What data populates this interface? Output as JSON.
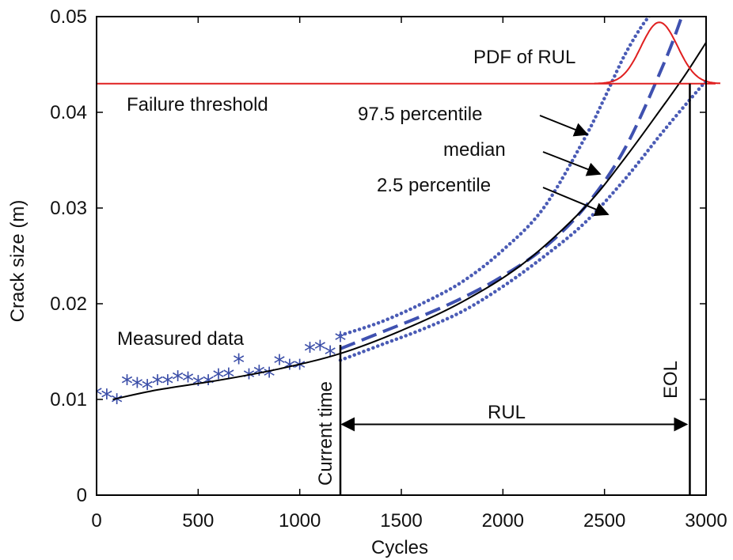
{
  "chart_data": {
    "type": "line",
    "xlabel": "Cycles",
    "ylabel": "Crack size (m)",
    "xlim": [
      0,
      3000
    ],
    "ylim": [
      0,
      0.05
    ],
    "xticks": [
      0,
      500,
      1000,
      1500,
      2000,
      2500,
      3000
    ],
    "yticks": [
      0,
      0.01,
      0.02,
      0.03,
      0.04,
      0.05
    ],
    "grid": false,
    "colors": {
      "measured": "#3b4ea8",
      "percentile_band": "#4a5bb5",
      "median": "#3f51b0",
      "true_curve": "#000000",
      "threshold": "#e02020",
      "pdf": "#e02020"
    },
    "series": [
      {
        "name": "Measured data",
        "style": "markers-star",
        "x": [
          0,
          50,
          100,
          150,
          200,
          250,
          300,
          350,
          400,
          450,
          500,
          550,
          600,
          650,
          700,
          750,
          800,
          850,
          900,
          950,
          1000,
          1050,
          1100,
          1150,
          1200
        ],
        "y": [
          0.0105,
          0.0102,
          0.0097,
          0.0117,
          0.0114,
          0.0112,
          0.0117,
          0.0117,
          0.0121,
          0.012,
          0.0116,
          0.0117,
          0.0123,
          0.0124,
          0.0139,
          0.0123,
          0.0127,
          0.0125,
          0.0138,
          0.0133,
          0.0133,
          0.0151,
          0.0153,
          0.0147,
          0.0162
        ]
      },
      {
        "name": "97.5 percentile",
        "style": "dotted",
        "x": [
          1200,
          1400,
          1600,
          1800,
          2000,
          2200,
          2400,
          2500,
          2600,
          2700,
          2780
        ],
        "y": [
          0.0167,
          0.0181,
          0.02,
          0.0223,
          0.0256,
          0.03,
          0.0372,
          0.0415,
          0.046,
          0.0495,
          0.0512
        ]
      },
      {
        "name": "median",
        "style": "dashed",
        "x": [
          1200,
          1400,
          1600,
          1800,
          2000,
          2200,
          2400,
          2600,
          2800,
          2900
        ],
        "y": [
          0.0153,
          0.017,
          0.0187,
          0.0206,
          0.0229,
          0.0258,
          0.03,
          0.0362,
          0.0455,
          0.0512
        ]
      },
      {
        "name": "true",
        "style": "solid",
        "x": [
          80,
          300,
          600,
          900,
          1200,
          1500,
          1800,
          2100,
          2400,
          2600,
          2800,
          2900,
          3000
        ],
        "y": [
          0.01,
          0.011,
          0.012,
          0.0132,
          0.0148,
          0.0172,
          0.0202,
          0.0242,
          0.03,
          0.0352,
          0.041,
          0.044,
          0.0473
        ]
      },
      {
        "name": "2.5 percentile",
        "style": "dotted",
        "x": [
          1200,
          1400,
          1600,
          1800,
          2000,
          2200,
          2400,
          2600,
          2800,
          3000
        ],
        "y": [
          0.0141,
          0.0157,
          0.0173,
          0.0192,
          0.0218,
          0.0249,
          0.0284,
          0.033,
          0.0383,
          0.0433
        ]
      }
    ],
    "threshold": {
      "label": "Failure threshold",
      "y": 0.043
    },
    "pdf": {
      "label": "PDF of RUL",
      "mean_cycles": 2770,
      "sd_cycles": 90,
      "peak_y": 0.0494,
      "x_range": [
        2450,
        3070
      ]
    },
    "current_time": {
      "label": "Current time",
      "x": 1200
    },
    "eol": {
      "label": "EOL",
      "x": 2920
    },
    "rul": {
      "label": "RUL",
      "from_x": 1200,
      "to_x": 2920,
      "y": 0.0074
    },
    "annotations": {
      "measured_data": "Measured data",
      "p975": "97.5 percentile",
      "median": "median",
      "p25": "2.5 percentile"
    }
  }
}
